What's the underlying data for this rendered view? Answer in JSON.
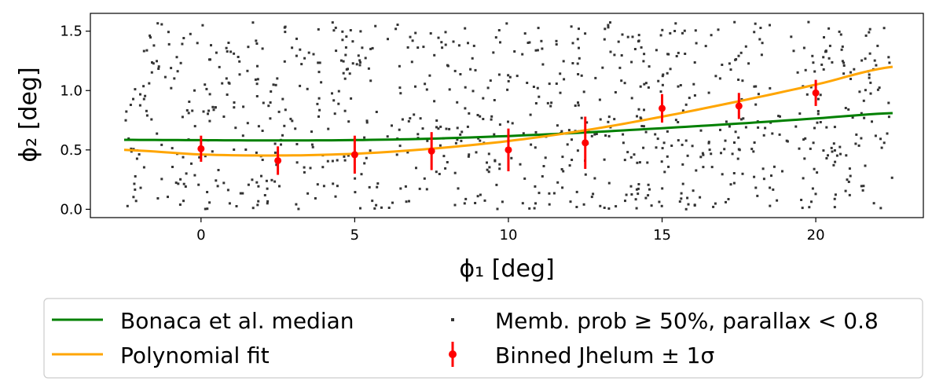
{
  "chart_data": {
    "type": "scatter",
    "xlabel": "ϕ₁ [deg]",
    "ylabel": "ϕ₂ [deg]",
    "xlim": [
      -3.6,
      23.5
    ],
    "ylim": [
      -0.07,
      1.65
    ],
    "x_ticks": [
      0,
      5,
      10,
      15,
      20
    ],
    "y_ticks": [
      0.0,
      0.5,
      1.0,
      1.5
    ],
    "x_tick_labels": [
      "0",
      "5",
      "10",
      "15",
      "20"
    ],
    "y_tick_labels": [
      "0.0",
      "0.5",
      "1.0",
      "1.5"
    ],
    "grid": false,
    "legend_placement": "below",
    "series": [
      {
        "name": "Bonaca et al. median",
        "kind": "line",
        "color": "#008000",
        "x": [
          -2.5,
          0,
          2.5,
          5,
          7.5,
          10,
          12.5,
          15,
          17.5,
          20,
          22.5
        ],
        "y": [
          0.585,
          0.582,
          0.58,
          0.583,
          0.595,
          0.617,
          0.647,
          0.683,
          0.722,
          0.765,
          0.81
        ]
      },
      {
        "name": "Polynomial fit",
        "kind": "line",
        "color": "#ffa500",
        "x": [
          -2.5,
          0,
          2.5,
          5,
          7.5,
          10,
          12.5,
          15,
          17.5,
          20,
          22.5
        ],
        "y": [
          0.5,
          0.462,
          0.453,
          0.468,
          0.51,
          0.575,
          0.665,
          0.78,
          0.91,
          1.05,
          1.2
        ]
      },
      {
        "name": "Memb. prob ≥ 50%, parallax < 0.8",
        "kind": "scatter",
        "color": "#333333",
        "count": 900,
        "x_range": [
          -2.5,
          22.5
        ],
        "y_range": [
          0.0,
          1.58
        ]
      },
      {
        "name": "Binned Jhelum ± 1σ",
        "kind": "errorbar",
        "color": "#ff0000",
        "x": [
          0,
          2.5,
          5,
          7.5,
          10,
          12.5,
          15,
          17.5,
          20
        ],
        "y": [
          0.51,
          0.41,
          0.46,
          0.49,
          0.5,
          0.56,
          0.85,
          0.87,
          0.98
        ],
        "yerr": [
          0.11,
          0.12,
          0.16,
          0.16,
          0.18,
          0.22,
          0.12,
          0.11,
          0.11
        ]
      }
    ]
  }
}
